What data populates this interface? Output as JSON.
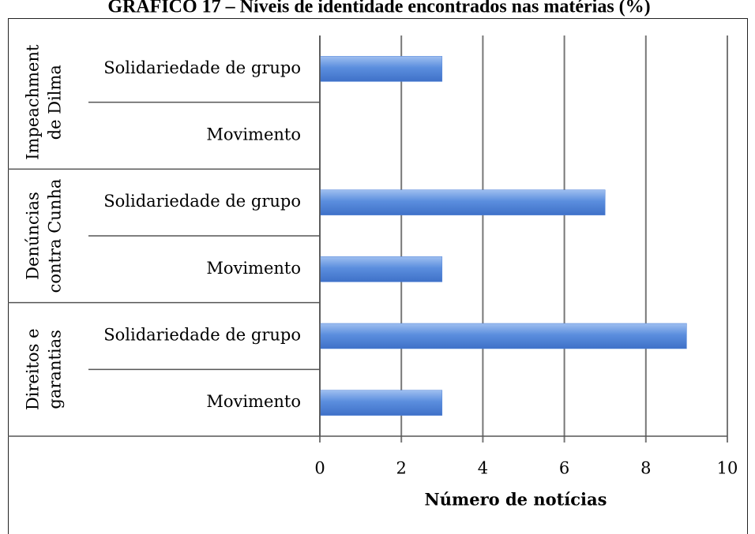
{
  "chart_data": {
    "type": "bar",
    "orientation": "horizontal",
    "title": "GRÁFICO 17 – Níveis de identidade encontrados nas matérias (%)",
    "groups": [
      {
        "label": [
          "Impeachment",
          "de Dilma"
        ],
        "categories": [
          "Solidariedade de grupo",
          "Movimento"
        ],
        "values": [
          3,
          0
        ]
      },
      {
        "label": [
          "Denúncias",
          "contra Cunha"
        ],
        "categories": [
          "Solidariedade de grupo",
          "Movimento"
        ],
        "values": [
          7,
          3
        ]
      },
      {
        "label": [
          "Direitos e",
          "garantias"
        ],
        "categories": [
          "Solidariedade de grupo",
          "Movimento"
        ],
        "values": [
          9,
          3
        ]
      }
    ],
    "color": "#4f82d8",
    "xlim": [
      0,
      10
    ],
    "xticks": [
      0,
      2,
      4,
      6,
      8,
      10
    ],
    "grid": true,
    "xlabel": "Número de notícias"
  }
}
